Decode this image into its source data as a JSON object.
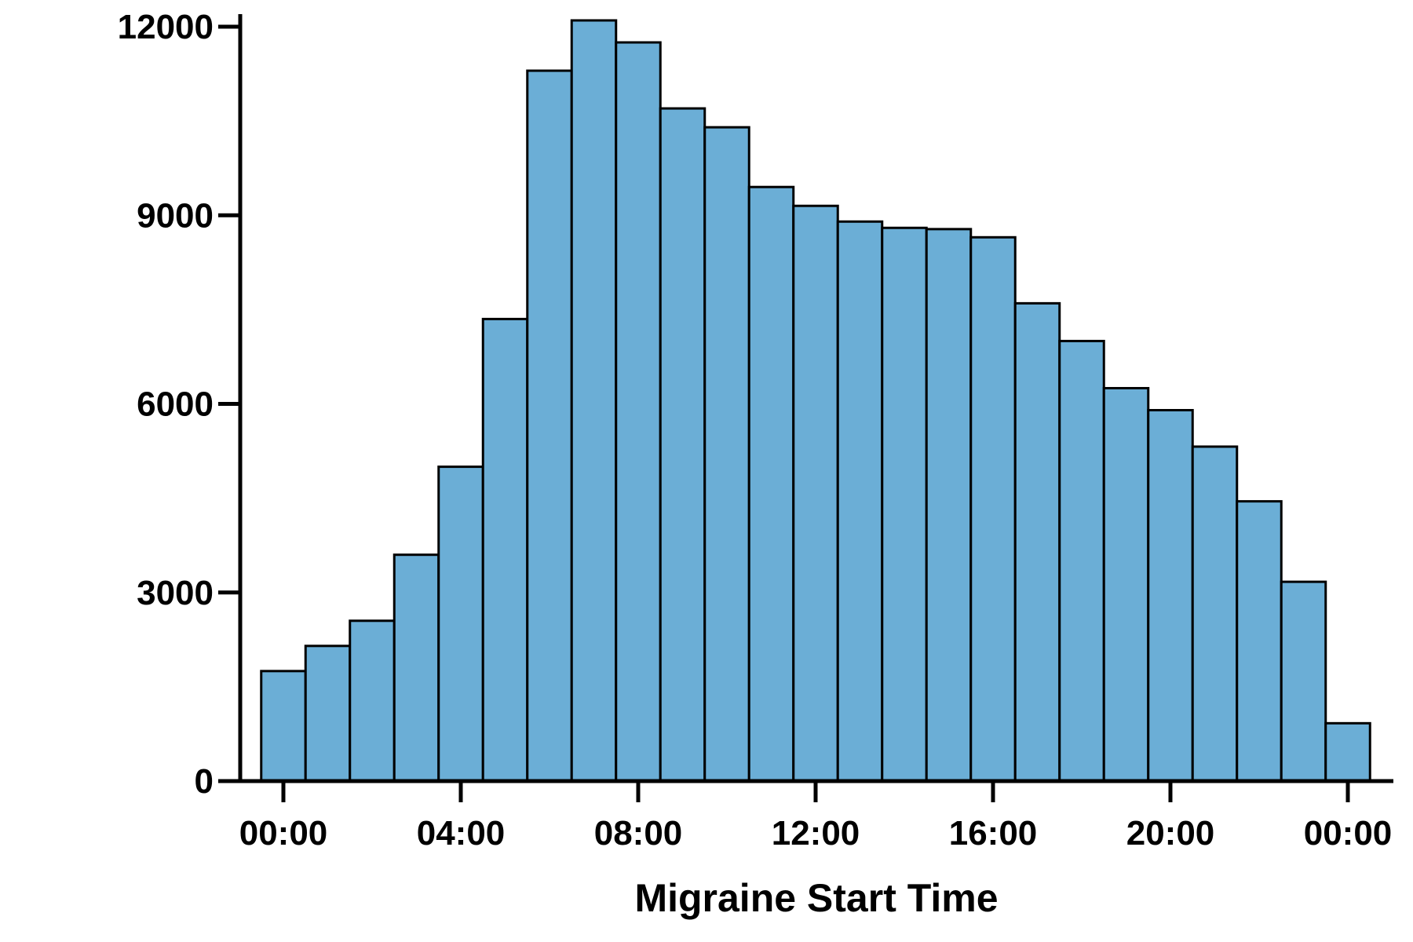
{
  "colors": {
    "bar_fill": "#6baed6",
    "bar_stroke": "#000000",
    "axis": "#000000"
  },
  "chart_data": {
    "type": "bar",
    "title": "",
    "xlabel": "Migraine Start Time",
    "ylabel": "",
    "grid": false,
    "legend": "none",
    "xlim": [
      -0.5,
      24.5
    ],
    "ylim": [
      0,
      12200
    ],
    "x": [
      0,
      1,
      2,
      3,
      4,
      5,
      6,
      7,
      8,
      9,
      10,
      11,
      12,
      13,
      14,
      15,
      16,
      17,
      18,
      19,
      20,
      21,
      22,
      23,
      24
    ],
    "values": [
      1750,
      2150,
      2550,
      3600,
      5000,
      7350,
      11300,
      12100,
      11750,
      10700,
      10400,
      9450,
      9150,
      8900,
      8800,
      8780,
      8650,
      7600,
      7000,
      6250,
      5900,
      5320,
      4450,
      3170,
      920
    ],
    "x_ticks": [
      {
        "x": 0,
        "label": "00:00"
      },
      {
        "x": 4,
        "label": "04:00"
      },
      {
        "x": 8,
        "label": "08:00"
      },
      {
        "x": 12,
        "label": "12:00"
      },
      {
        "x": 16,
        "label": "16:00"
      },
      {
        "x": 20,
        "label": "20:00"
      },
      {
        "x": 24,
        "label": "00:00"
      }
    ],
    "y_ticks": [
      {
        "value": 0,
        "label": "0"
      },
      {
        "value": 3000,
        "label": "3000"
      },
      {
        "value": 6000,
        "label": "6000"
      },
      {
        "value": 9000,
        "label": "9000"
      },
      {
        "value": 12000,
        "label": "12000"
      }
    ]
  }
}
